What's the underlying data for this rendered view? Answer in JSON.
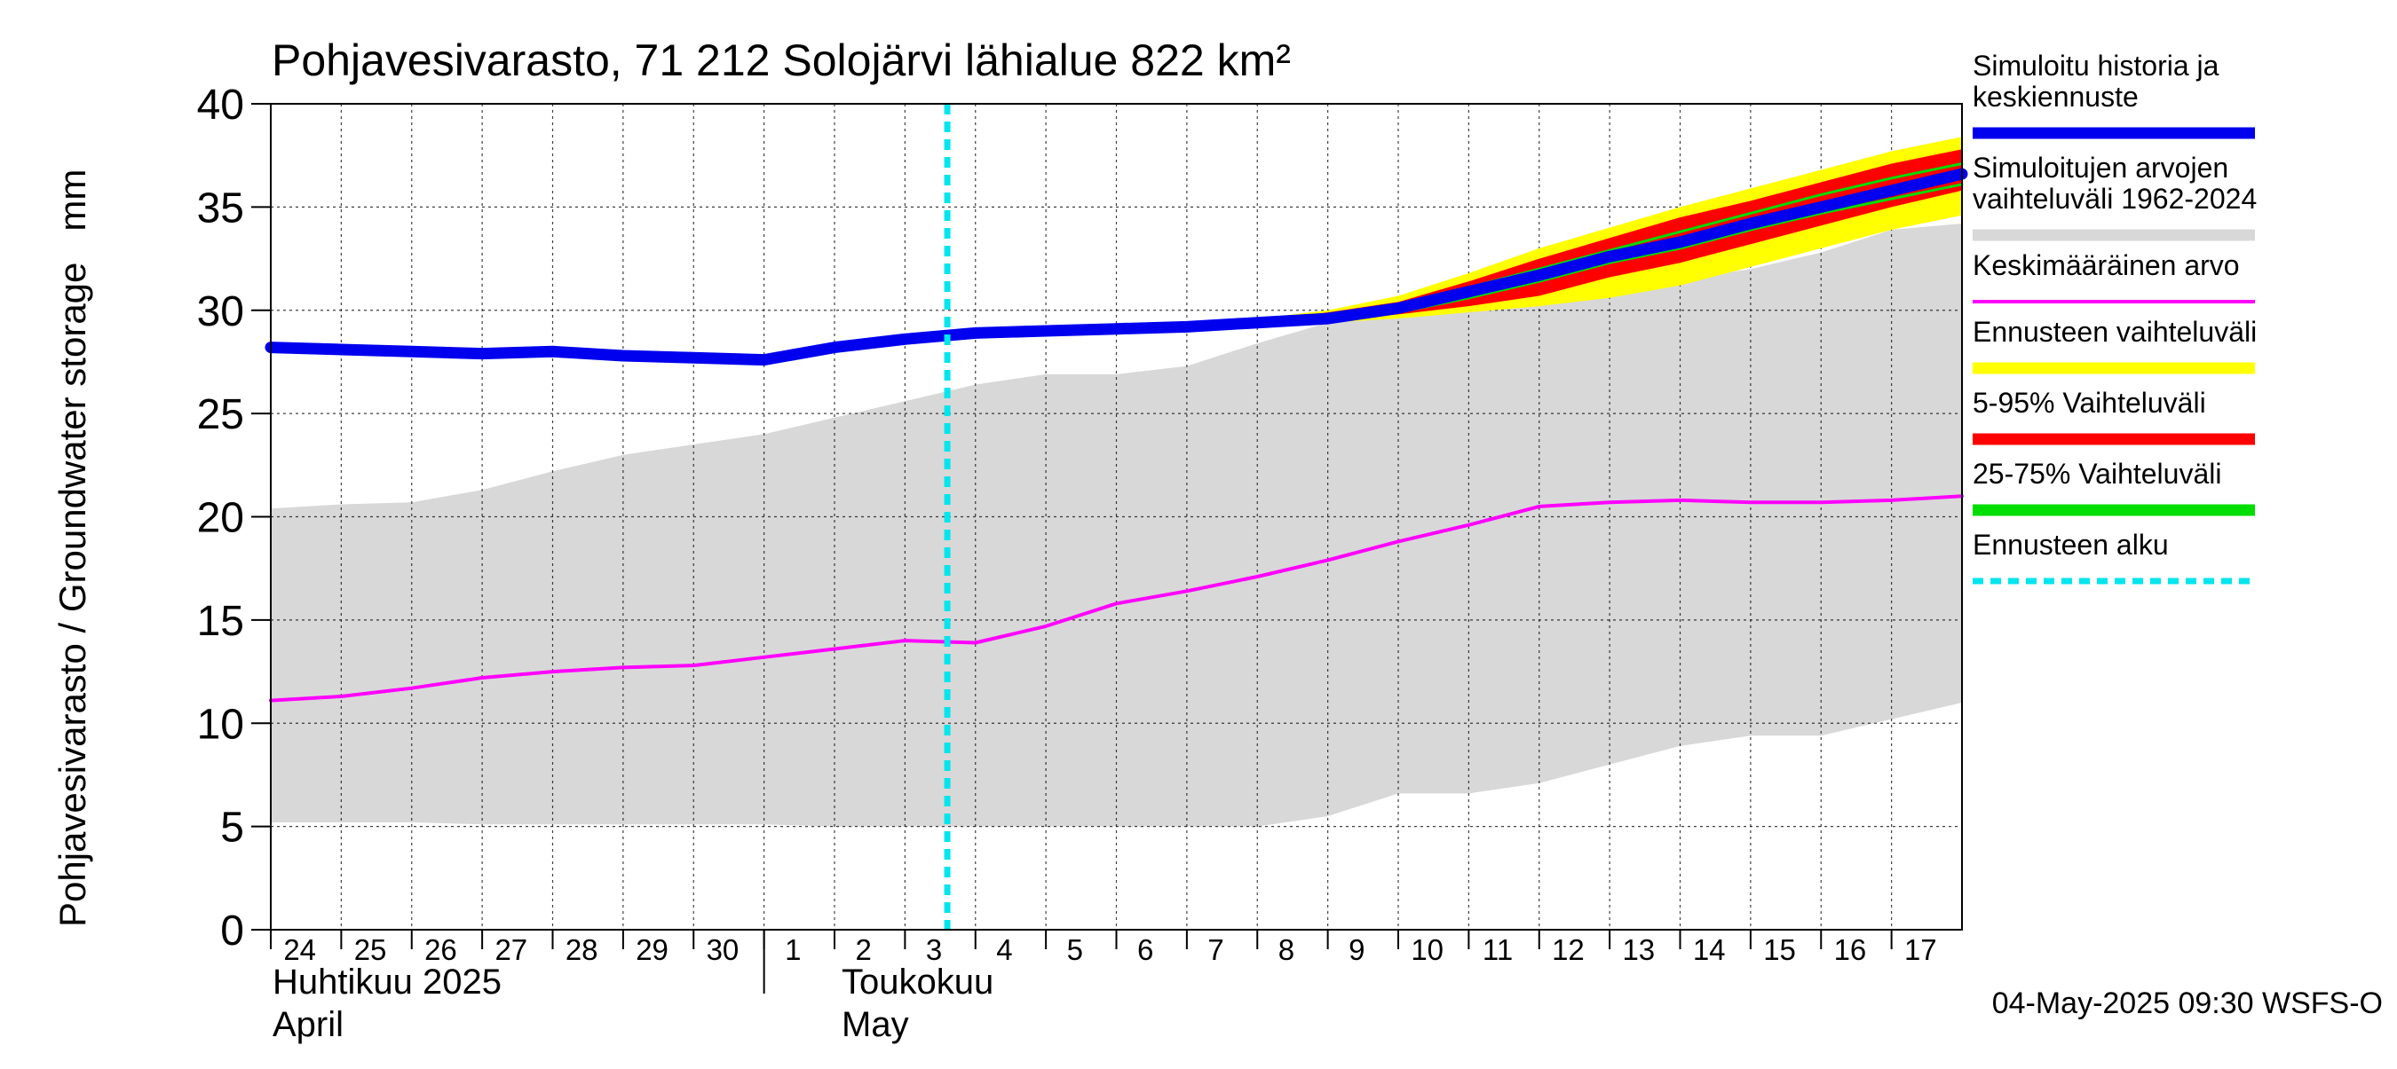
{
  "chart_data": {
    "type": "area",
    "title": "Pohjavesivarasto, 71 212 Solojärvi lähialue 822 km²",
    "ylabel": "Pohjavesivarasto / Groundwater storage   mm",
    "ylim": [
      0,
      40
    ],
    "yticks": [
      0,
      5,
      10,
      15,
      20,
      25,
      30,
      35,
      40
    ],
    "grid": true,
    "legend_position": "right",
    "x_day_labels": [
      "24",
      "25",
      "26",
      "27",
      "28",
      "29",
      "30",
      "1",
      "2",
      "3",
      "4",
      "5",
      "6",
      "7",
      "8",
      "9",
      "10",
      "11",
      "12",
      "13",
      "14",
      "15",
      "16",
      "17"
    ],
    "month_labels": [
      {
        "fi": "Huhtikuu  2025",
        "en": "April"
      },
      {
        "fi": "Toukokuu",
        "en": "May"
      }
    ],
    "forecast_start": "4",
    "footer": "04-May-2025 09:30 WSFS-O",
    "colors": {
      "history": "#0000ee",
      "range_hist": "#d8d8d8",
      "mean": "#ff00ff",
      "forecast_range": "#ffff00",
      "range_5_95": "#ff0000",
      "range_25_75": "#00dd00",
      "forecast_start": "#00e5ee"
    },
    "legend": [
      {
        "label_lines": [
          "Simuloitu historia ja",
          "keskiennuste"
        ],
        "color": "#0000ee",
        "style": "thick"
      },
      {
        "label_lines": [
          "Simuloitujen arvojen",
          "vaihteluväli 1962-2024"
        ],
        "color": "#d8d8d8",
        "style": "thick"
      },
      {
        "label_lines": [
          "Keskimääräinen arvo"
        ],
        "color": "#ff00ff",
        "style": "thin"
      },
      {
        "label_lines": [
          "Ennusteen vaihteluväli"
        ],
        "color": "#ffff00",
        "style": "thick"
      },
      {
        "label_lines": [
          "5-95% Vaihteluväli"
        ],
        "color": "#ff0000",
        "style": "thick"
      },
      {
        "label_lines": [
          "25-75% Vaihteluväli"
        ],
        "color": "#00dd00",
        "style": "thick"
      },
      {
        "label_lines": [
          "Ennusteen alku"
        ],
        "color": "#00e5ee",
        "style": "dashed"
      }
    ],
    "x_days": [
      0,
      1,
      2,
      3,
      4,
      5,
      6,
      7,
      8,
      9,
      10,
      11,
      12,
      13,
      14,
      15,
      16,
      17,
      18,
      19,
      20,
      21,
      22,
      23,
      24
    ],
    "series": [
      {
        "name": "Simuloitujen arvojen vaihteluväli 1962-2024 (max)",
        "values": [
          20.4,
          20.6,
          20.7,
          21.3,
          22.2,
          23.0,
          23.5,
          24.0,
          24.8,
          25.6,
          26.4,
          26.9,
          26.9,
          27.3,
          28.4,
          29.4,
          30.0,
          30.3,
          30.8,
          31.1,
          31.5,
          32.0,
          32.8,
          33.9,
          34.2
        ]
      },
      {
        "name": "Simuloitujen arvojen vaihteluväli 1962-2024 (min)",
        "values": [
          5.2,
          5.2,
          5.2,
          5.1,
          5.1,
          5.1,
          5.1,
          5.1,
          5.0,
          5.0,
          5.0,
          5.0,
          5.0,
          5.0,
          5.0,
          5.5,
          6.6,
          6.6,
          7.1,
          8.0,
          8.9,
          9.4,
          9.4,
          10.2,
          11.0
        ]
      },
      {
        "name": "Keskimääräinen arvo",
        "values": [
          11.1,
          11.3,
          11.7,
          12.2,
          12.5,
          12.7,
          12.8,
          13.2,
          13.6,
          14.0,
          13.9,
          14.7,
          15.8,
          16.4,
          17.1,
          17.9,
          18.8,
          19.6,
          20.5,
          20.7,
          20.8,
          20.7,
          20.7,
          20.8,
          21.0
        ]
      },
      {
        "name": "Simuloitu historia ja keskiennuste",
        "values": [
          28.2,
          28.1,
          28.0,
          27.9,
          28.0,
          27.8,
          27.7,
          27.6,
          28.2,
          28.6,
          28.9,
          29.0,
          29.1,
          29.2,
          29.4,
          29.6,
          30.1,
          30.9,
          31.7,
          32.6,
          33.3,
          34.2,
          35.0,
          35.8,
          36.6
        ]
      },
      {
        "name": "Ennusteen vaihteluväli (max)",
        "values": [
          null,
          null,
          null,
          null,
          null,
          null,
          null,
          null,
          null,
          null,
          28.9,
          29.0,
          29.1,
          29.3,
          29.6,
          30.0,
          30.7,
          31.8,
          33.0,
          34.0,
          35.0,
          35.9,
          36.8,
          37.7,
          38.4
        ]
      },
      {
        "name": "Ennusteen vaihteluväli (min)",
        "values": [
          null,
          null,
          null,
          null,
          null,
          null,
          null,
          null,
          null,
          null,
          28.9,
          29.0,
          29.1,
          29.2,
          29.3,
          29.4,
          29.6,
          29.9,
          30.2,
          30.6,
          31.2,
          32.1,
          33.0,
          33.9,
          34.6
        ]
      },
      {
        "name": "5-95% Vaihteluväli (max)",
        "values": [
          null,
          null,
          null,
          null,
          null,
          null,
          null,
          null,
          null,
          null,
          28.9,
          29.0,
          29.1,
          29.3,
          29.5,
          29.9,
          30.4,
          31.4,
          32.5,
          33.5,
          34.5,
          35.3,
          36.2,
          37.1,
          37.8
        ]
      },
      {
        "name": "5-95% Vaihteluväli (min)",
        "values": [
          null,
          null,
          null,
          null,
          null,
          null,
          null,
          null,
          null,
          null,
          28.9,
          29.0,
          29.1,
          29.2,
          29.3,
          29.5,
          29.8,
          30.2,
          30.7,
          31.6,
          32.3,
          33.2,
          34.1,
          35.0,
          35.8
        ]
      },
      {
        "name": "25-75% Vaihteluväli (max)",
        "values": [
          null,
          null,
          null,
          null,
          null,
          null,
          null,
          null,
          null,
          null,
          28.9,
          29.0,
          29.1,
          29.2,
          29.4,
          29.7,
          30.2,
          31.1,
          32.0,
          32.9,
          33.8,
          34.7,
          35.6,
          36.4,
          37.1
        ]
      },
      {
        "name": "25-75% Vaihteluväli (min)",
        "values": [
          null,
          null,
          null,
          null,
          null,
          null,
          null,
          null,
          null,
          null,
          28.9,
          29.0,
          29.1,
          29.2,
          29.3,
          29.5,
          29.9,
          30.6,
          31.4,
          32.3,
          33.0,
          33.9,
          34.7,
          35.4,
          36.1
        ]
      }
    ]
  }
}
